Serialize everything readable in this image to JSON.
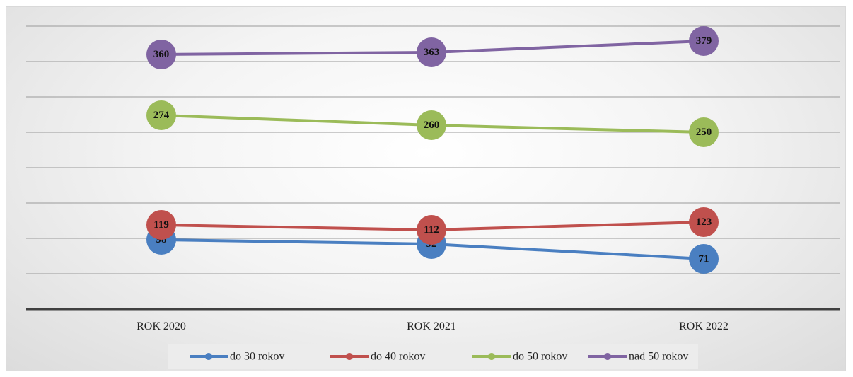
{
  "chart_data": {
    "type": "line",
    "categories": [
      "ROK 2020",
      "ROK 2021",
      "ROK 2022"
    ],
    "series": [
      {
        "name": "do 30 rokov",
        "values": [
          98,
          92,
          71
        ],
        "color": "#4a7fc1"
      },
      {
        "name": "do 40 rokov",
        "values": [
          119,
          112,
          123
        ],
        "color": "#c0504d"
      },
      {
        "name": "do 50 rokov",
        "values": [
          274,
          260,
          250
        ],
        "color": "#9bbb59"
      },
      {
        "name": "nad 50 rokov",
        "values": [
          360,
          363,
          379
        ],
        "color": "#8064a2"
      }
    ],
    "ylim": [
      0,
      400
    ],
    "grid": true,
    "y_axis_labels_shown": false,
    "data_labels": true,
    "legend": "bottom"
  }
}
